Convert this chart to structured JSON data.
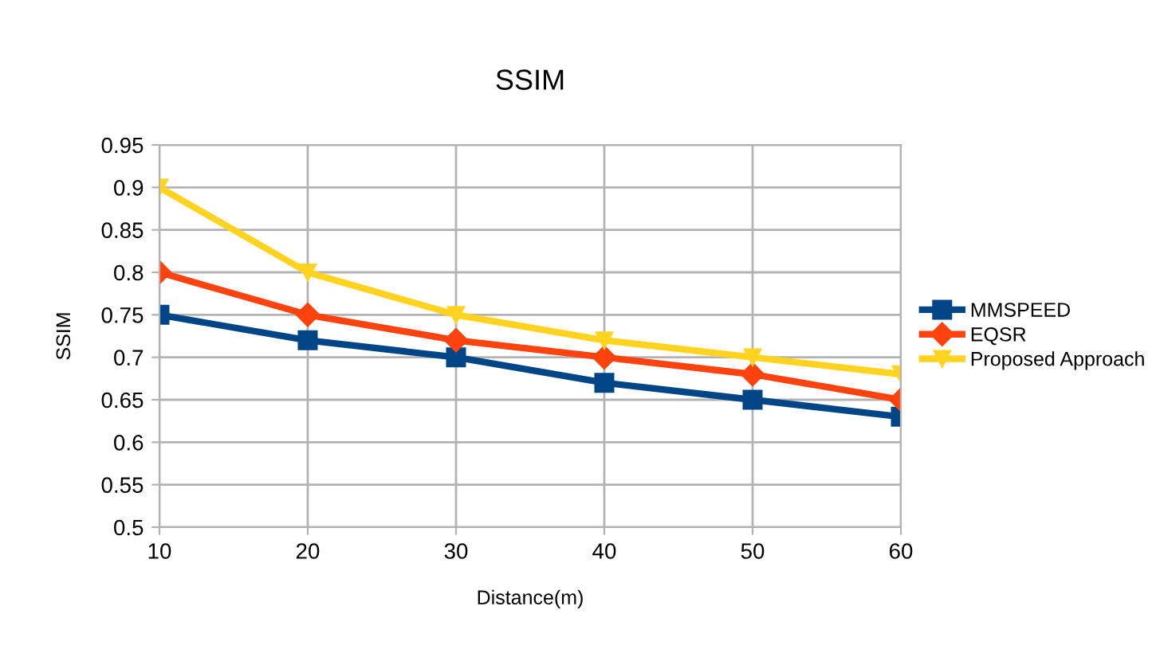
{
  "chart_data": {
    "type": "line",
    "title": "SSIM",
    "xlabel": "Distance(m)",
    "ylabel": "SSIM",
    "x": [
      10,
      20,
      30,
      40,
      50,
      60
    ],
    "series": [
      {
        "name": "MMSPEED",
        "color": "#004586",
        "marker": "square",
        "values": [
          0.75,
          0.72,
          0.7,
          0.67,
          0.65,
          0.63
        ]
      },
      {
        "name": "EQSR",
        "color": "#ff420e",
        "marker": "diamond",
        "values": [
          0.8,
          0.75,
          0.72,
          0.7,
          0.68,
          0.65
        ]
      },
      {
        "name": "Proposed Approach",
        "color": "#ffd320",
        "marker": "triangle",
        "values": [
          0.9,
          0.8,
          0.75,
          0.72,
          0.7,
          0.68
        ]
      }
    ],
    "xlim": [
      10,
      60
    ],
    "xticks": [
      10,
      20,
      30,
      40,
      50,
      60
    ],
    "ylim": [
      0.5,
      0.95
    ],
    "yticks": [
      0.5,
      0.55,
      0.6,
      0.65,
      0.7,
      0.75,
      0.8,
      0.85,
      0.9,
      0.95
    ],
    "grid": true,
    "legend": "right",
    "line_style": "solid"
  }
}
